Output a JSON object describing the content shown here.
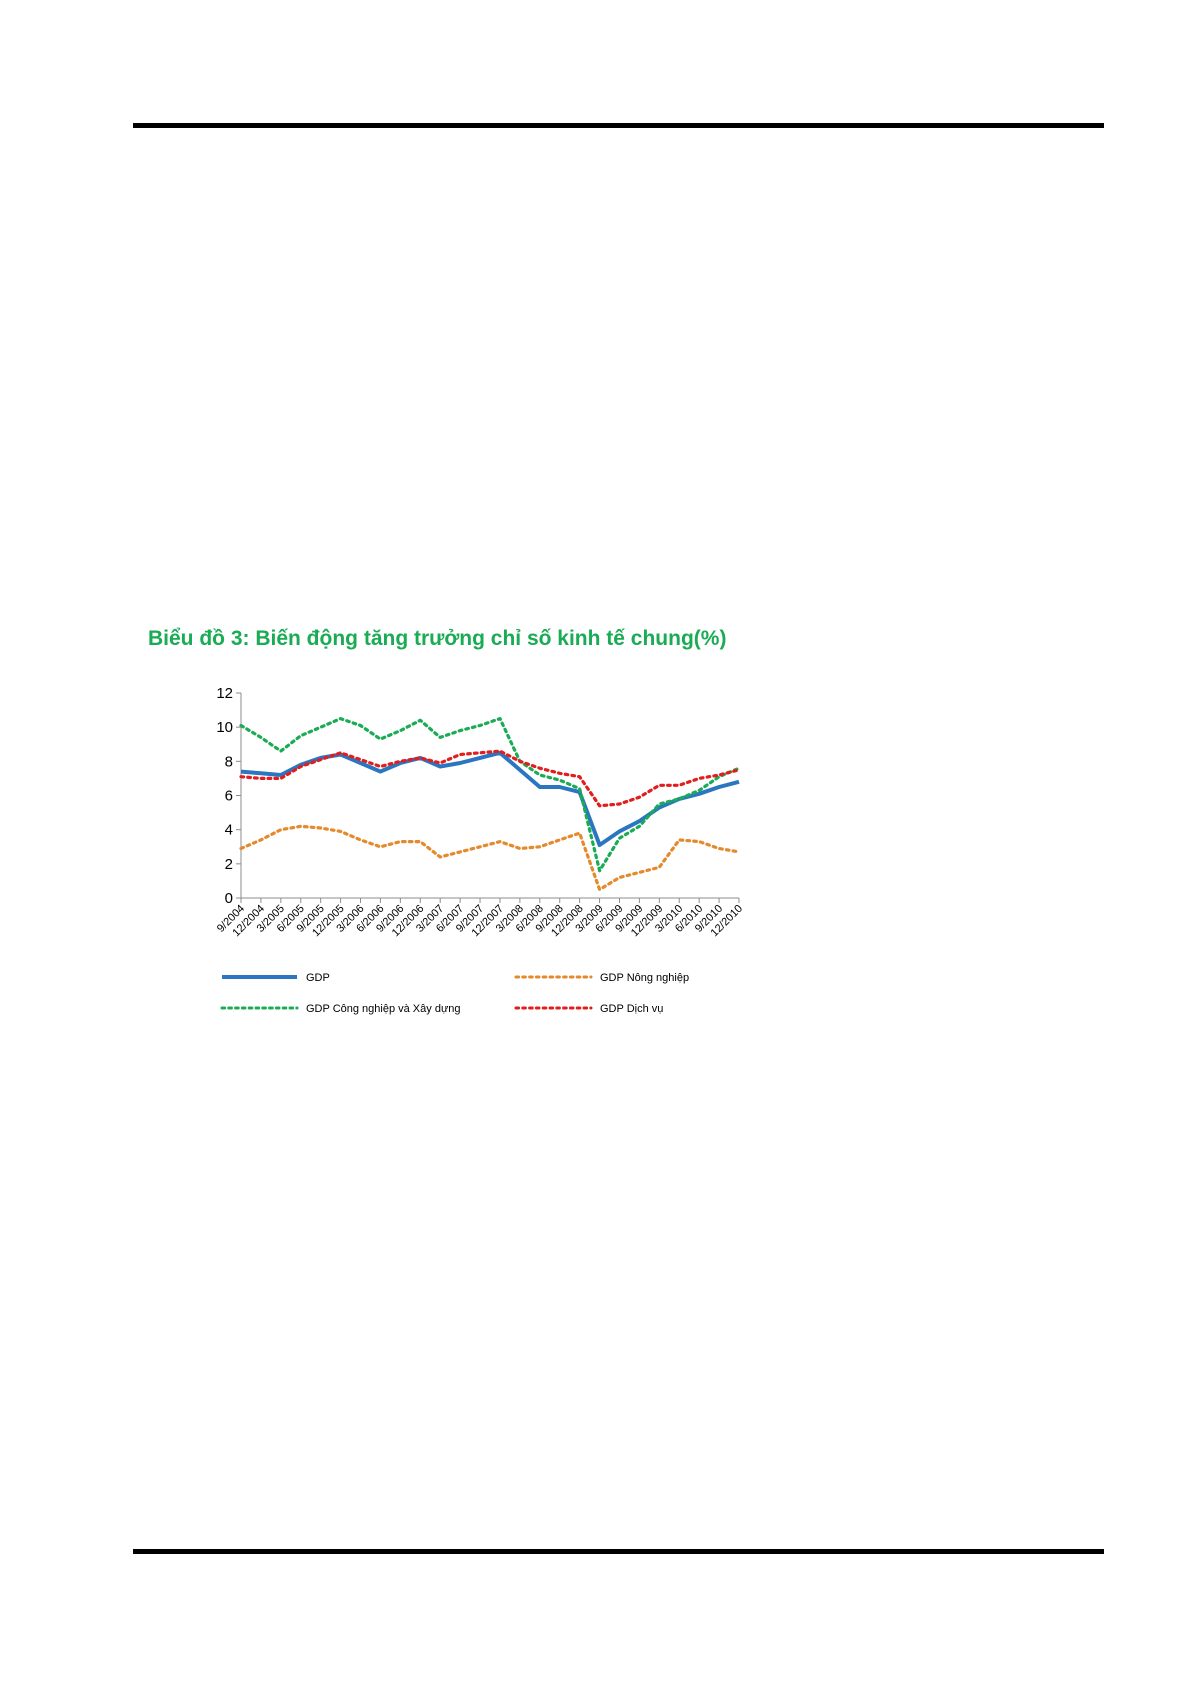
{
  "page": {
    "colors": {
      "rule": "#000000",
      "title": "#1aab55",
      "axis": "#8c8c8c"
    }
  },
  "chart_data": {
    "type": "line",
    "title": "Biểu đồ 3: Biến động tăng trưởng chỉ số kinh tế chung(%)",
    "xlabel": "",
    "ylabel": "",
    "ylim": [
      0,
      12
    ],
    "yticks": [
      "0",
      "2",
      "4",
      "6",
      "8",
      "10",
      "12"
    ],
    "grid": false,
    "legend": "bottom",
    "x": [
      "9/2004",
      "12/2004",
      "3/2005",
      "6/2005",
      "9/2005",
      "12/2005",
      "3/2006",
      "6/2006",
      "9/2006",
      "12/2006",
      "3/2007",
      "6/2007",
      "9/2007",
      "12/2007",
      "3/2008",
      "6/2008",
      "9/2008",
      "12/2008",
      "3/2009",
      "6/2009",
      "9/2009",
      "12/2009",
      "3/2010",
      "6/2010",
      "9/2010",
      "12/2010"
    ],
    "series": [
      {
        "name": "GDP",
        "color": "#2a76c0",
        "style": "solid",
        "values": [
          7.4,
          7.3,
          7.2,
          7.8,
          8.2,
          8.4,
          7.9,
          7.4,
          7.9,
          8.2,
          7.7,
          7.9,
          8.2,
          8.5,
          7.5,
          6.5,
          6.5,
          6.2,
          3.1,
          3.9,
          4.5,
          5.3,
          5.8,
          6.1,
          6.5,
          6.8
        ]
      },
      {
        "name": "GDP Nông nghiệp",
        "color": "#e48a2c",
        "style": "dotted",
        "values": [
          2.9,
          3.4,
          4.0,
          4.2,
          4.1,
          3.9,
          3.4,
          3.0,
          3.3,
          3.3,
          2.4,
          2.7,
          3.0,
          3.3,
          2.9,
          3.0,
          3.4,
          3.8,
          0.5,
          1.2,
          1.5,
          1.8,
          3.4,
          3.3,
          2.9,
          2.7
        ]
      },
      {
        "name": "GDP Công nghiệp và Xây dựng",
        "color": "#1aab55",
        "style": "dotted",
        "values": [
          10.1,
          9.4,
          8.6,
          9.5,
          10.0,
          10.5,
          10.1,
          9.3,
          9.8,
          10.4,
          9.4,
          9.8,
          10.1,
          10.5,
          8.0,
          7.2,
          6.9,
          6.4,
          1.6,
          3.5,
          4.2,
          5.5,
          5.8,
          6.3,
          7.1,
          7.6
        ]
      },
      {
        "name": "GDP Dịch vụ",
        "color": "#e21d1d",
        "style": "dotted",
        "values": [
          7.1,
          7.0,
          7.0,
          7.7,
          8.1,
          8.5,
          8.1,
          7.7,
          8.0,
          8.2,
          7.9,
          8.4,
          8.5,
          8.6,
          8.0,
          7.6,
          7.3,
          7.1,
          5.4,
          5.5,
          5.9,
          6.6,
          6.6,
          7.0,
          7.2,
          7.5
        ]
      }
    ]
  }
}
